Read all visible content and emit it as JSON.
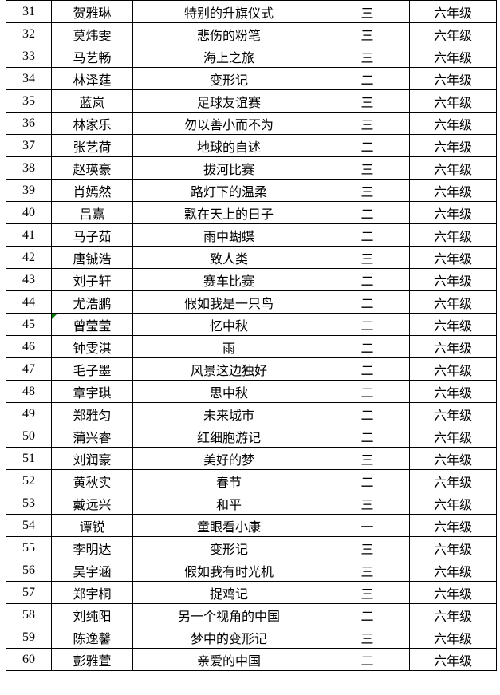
{
  "colors": {
    "border": "#000000",
    "text": "#000000",
    "background": "#ffffff",
    "error_indicator": "#007B00"
  },
  "table": {
    "column_keys": [
      "no",
      "name",
      "title",
      "level",
      "grade"
    ],
    "rows": [
      {
        "no": "31",
        "name": "贺雅琳",
        "title": "特别的升旗仪式",
        "level": "三",
        "grade": "六年级"
      },
      {
        "no": "32",
        "name": "莫炜雯",
        "title": "悲伤的粉笔",
        "level": "三",
        "grade": "六年级"
      },
      {
        "no": "33",
        "name": "马艺畅",
        "title": "海上之旅",
        "level": "三",
        "grade": "六年级"
      },
      {
        "no": "34",
        "name": "林泽莛",
        "title": "变形记",
        "level": "二",
        "grade": "六年级"
      },
      {
        "no": "35",
        "name": "蓝岚",
        "title": "足球友谊赛",
        "level": "三",
        "grade": "六年级"
      },
      {
        "no": "36",
        "name": "林家乐",
        "title": "勿以善小而不为",
        "level": "三",
        "grade": "六年级"
      },
      {
        "no": "37",
        "name": "张艺荷",
        "title": "地球的自述",
        "level": "二",
        "grade": "六年级"
      },
      {
        "no": "38",
        "name": "赵瑛豪",
        "title": "拔河比赛",
        "level": "三",
        "grade": "六年级"
      },
      {
        "no": "39",
        "name": "肖嫣然",
        "title": "路灯下的温柔",
        "level": "三",
        "grade": "六年级"
      },
      {
        "no": "40",
        "name": "吕嘉",
        "title": "飘在天上的日子",
        "level": "二",
        "grade": "六年级"
      },
      {
        "no": "41",
        "name": "马子茹",
        "title": "雨中蝴蝶",
        "level": "二",
        "grade": "六年级"
      },
      {
        "no": "42",
        "name": "唐铖浩",
        "title": "致人类",
        "level": "三",
        "grade": "六年级"
      },
      {
        "no": "43",
        "name": "刘子轩",
        "title": "赛车比赛",
        "level": "二",
        "grade": "六年级"
      },
      {
        "no": "44",
        "name": "尤浩鹏",
        "title": "假如我是一只鸟",
        "level": "二",
        "grade": "六年级"
      },
      {
        "no": "45",
        "name": "曾莹莹",
        "title": "忆中秋",
        "level": "二",
        "grade": "六年级",
        "marker": "name"
      },
      {
        "no": "46",
        "name": "钟雯淇",
        "title": "雨",
        "level": "二",
        "grade": "六年级"
      },
      {
        "no": "47",
        "name": "毛子墨",
        "title": "风景这边独好",
        "level": "二",
        "grade": "六年级"
      },
      {
        "no": "48",
        "name": "章宇琪",
        "title": "思中秋",
        "level": "二",
        "grade": "六年级"
      },
      {
        "no": "49",
        "name": "郑雅匀",
        "title": "未来城市",
        "level": "二",
        "grade": "六年级"
      },
      {
        "no": "50",
        "name": "蒲兴睿",
        "title": "红细胞游记",
        "level": "二",
        "grade": "六年级"
      },
      {
        "no": "51",
        "name": "刘润豪",
        "title": "美好的梦",
        "level": "三",
        "grade": "六年级"
      },
      {
        "no": "52",
        "name": "黄秋实",
        "title": "春节",
        "level": "二",
        "grade": "六年级"
      },
      {
        "no": "53",
        "name": "戴远兴",
        "title": "和平",
        "level": "三",
        "grade": "六年级"
      },
      {
        "no": "54",
        "name": "谭锐",
        "title": "童眼看小康",
        "level": "一",
        "grade": "六年级"
      },
      {
        "no": "55",
        "name": "李明达",
        "title": "变形记",
        "level": "三",
        "grade": "六年级"
      },
      {
        "no": "56",
        "name": "吴宇涵",
        "title": "假如我有时光机",
        "level": "三",
        "grade": "六年级"
      },
      {
        "no": "57",
        "name": "郑宇桐",
        "title": "捉鸡记",
        "level": "三",
        "grade": "六年级"
      },
      {
        "no": "58",
        "name": "刘纯阳",
        "title": "另一个视角的中国",
        "level": "二",
        "grade": "六年级"
      },
      {
        "no": "59",
        "name": "陈逸馨",
        "title": "梦中的变形记",
        "level": "三",
        "grade": "六年级"
      },
      {
        "no": "60",
        "name": "彭雅萱",
        "title": "亲爱的中国",
        "level": "二",
        "grade": "六年级"
      }
    ]
  }
}
